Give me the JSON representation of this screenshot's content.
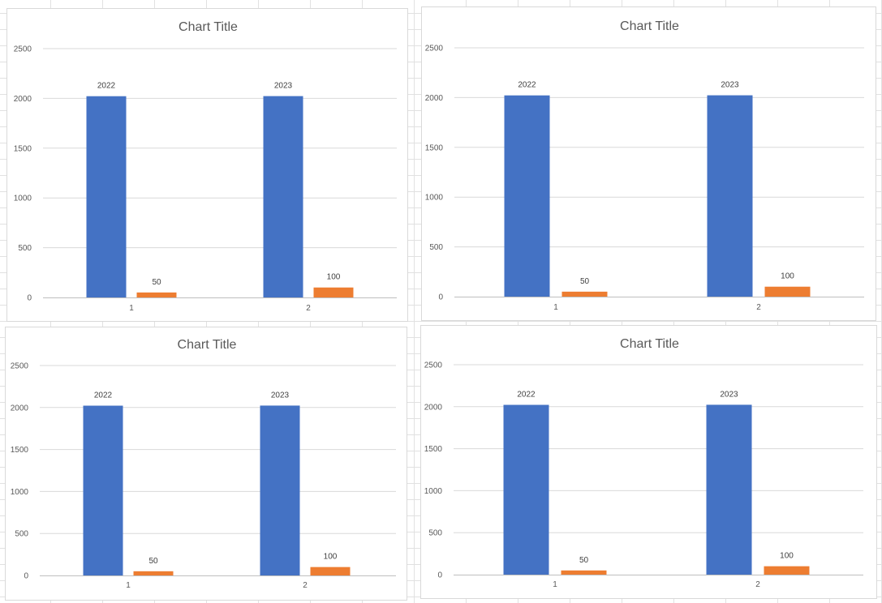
{
  "chart_data": [
    {
      "type": "bar",
      "title": "Chart Title",
      "categories": [
        "1",
        "2"
      ],
      "series": [
        {
          "values": [
            2022,
            2023
          ],
          "labels": [
            "2022",
            "2023"
          ],
          "color": "#4472C4"
        },
        {
          "values": [
            50,
            100
          ],
          "labels": [
            "50",
            "100"
          ],
          "color": "#ED7D31"
        }
      ],
      "ylim": [
        0,
        2500
      ],
      "yticks": [
        0,
        500,
        1000,
        1500,
        2000,
        2500
      ],
      "grid": true,
      "legend": "none"
    },
    {
      "type": "bar",
      "title": "Chart Title",
      "categories": [
        "1",
        "2"
      ],
      "series": [
        {
          "values": [
            2022,
            2023
          ],
          "labels": [
            "2022",
            "2023"
          ],
          "color": "#4472C4"
        },
        {
          "values": [
            50,
            100
          ],
          "labels": [
            "50",
            "100"
          ],
          "color": "#ED7D31"
        }
      ],
      "ylim": [
        0,
        2500
      ],
      "yticks": [
        0,
        500,
        1000,
        1500,
        2000,
        2500
      ],
      "grid": true,
      "legend": "none"
    },
    {
      "type": "bar",
      "title": "Chart Title",
      "categories": [
        "1",
        "2"
      ],
      "series": [
        {
          "values": [
            2022,
            2023
          ],
          "labels": [
            "2022",
            "2023"
          ],
          "color": "#4472C4"
        },
        {
          "values": [
            50,
            100
          ],
          "labels": [
            "50",
            "100"
          ],
          "color": "#ED7D31"
        }
      ],
      "ylim": [
        0,
        2500
      ],
      "yticks": [
        0,
        500,
        1000,
        1500,
        2000,
        2500
      ],
      "grid": true,
      "legend": "none"
    },
    {
      "type": "bar",
      "title": "Chart Title",
      "categories": [
        "1",
        "2"
      ],
      "series": [
        {
          "values": [
            2022,
            2023
          ],
          "labels": [
            "2022",
            "2023"
          ],
          "color": "#4472C4"
        },
        {
          "values": [
            50,
            100
          ],
          "labels": [
            "50",
            "100"
          ],
          "color": "#ED7D31"
        }
      ],
      "ylim": [
        0,
        2500
      ],
      "yticks": [
        0,
        500,
        1000,
        1500,
        2000,
        2500
      ],
      "grid": true,
      "legend": "none"
    }
  ]
}
